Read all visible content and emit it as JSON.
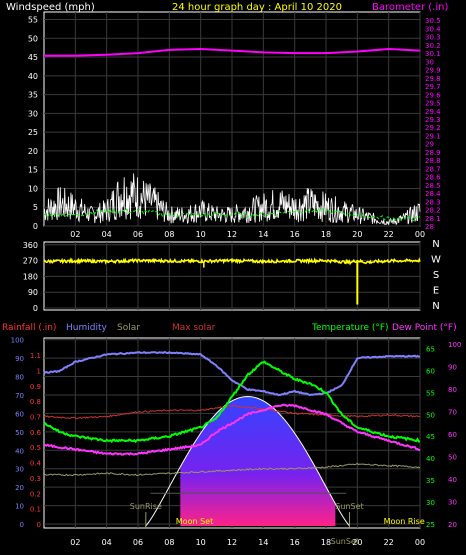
{
  "colors": {
    "wind": "#ffffff",
    "wind_avg": "#00ff00",
    "baro": "#ff00ff",
    "baro_label": "#ff00ff",
    "dir": "#ffff00",
    "rain": "#ff3333",
    "humidity": "#8080ff",
    "solar": "#999966",
    "maxsolar": "#cc3333",
    "temp": "#00ff00",
    "dew": "#ff33ff",
    "gridline": "#3a3a3a",
    "axis_text": "#ffffff",
    "title": "#ffff00"
  },
  "chart_data": [
    {
      "type": "line",
      "name": "wind",
      "title": "24 hour graph day : April 10 2020",
      "ylabel": "Windspeed (mph)",
      "y2label": "Barometer (.in)",
      "ylim": [
        0,
        57
      ],
      "y2lim": [
        28.0,
        30.6
      ],
      "yticks": [
        0,
        5,
        10,
        15,
        20,
        25,
        30,
        35,
        40,
        45,
        50,
        55
      ],
      "y2ticks": [
        "28",
        "28.1",
        "28.2",
        "28.3",
        "28.4",
        "28.5",
        "28.6",
        "28.7",
        "28.8",
        "28.9",
        "29",
        "29.1",
        "29.2",
        "29.3",
        "29.4",
        "29.5",
        "29.6",
        "29.7",
        "29.8",
        "29.9",
        "30",
        "30.1",
        "30.2",
        "30.3",
        "30.4",
        "30.5"
      ],
      "xticks": [
        "02",
        "04",
        "06",
        "08",
        "10",
        "12",
        "14",
        "16",
        "18",
        "20",
        "22",
        "00"
      ],
      "series": [
        {
          "key": "baro",
          "x": [
            0,
            2,
            4,
            6,
            8,
            10,
            12,
            14,
            16,
            18,
            20,
            22,
            24
          ],
          "values": [
            30.07,
            30.07,
            30.08,
            30.1,
            30.14,
            30.15,
            30.13,
            30.11,
            30.1,
            30.1,
            30.12,
            30.15,
            30.13
          ]
        },
        {
          "key": "wind",
          "x": [
            0,
            1,
            2,
            3,
            4,
            5,
            6,
            7,
            8,
            9,
            10,
            11,
            12,
            13,
            14,
            15,
            16,
            17,
            18,
            19,
            20,
            21,
            22,
            23,
            24
          ],
          "values": [
            4,
            6,
            5,
            3,
            4,
            9,
            8,
            6,
            3,
            3,
            4,
            3,
            3,
            4,
            5,
            6,
            5,
            6,
            5,
            4,
            3,
            2,
            1,
            2,
            4
          ]
        },
        {
          "key": "wind_avg",
          "x": [
            0,
            2,
            4,
            6,
            8,
            10,
            12,
            14,
            16,
            18,
            20,
            22,
            24
          ],
          "values": [
            3,
            3,
            4,
            4,
            3,
            3,
            3,
            3,
            4,
            4,
            3,
            2,
            2
          ]
        }
      ]
    },
    {
      "type": "line",
      "name": "direction",
      "yticks": [
        0,
        90,
        180,
        270,
        360
      ],
      "ylim": [
        0,
        360
      ],
      "compass": [
        "N",
        "W",
        "S",
        "E",
        "N"
      ],
      "series": [
        {
          "key": "dir",
          "x": [
            0,
            2,
            4,
            6,
            8,
            10,
            12,
            14,
            16,
            18,
            19.5,
            20,
            20.5,
            22,
            24
          ],
          "values": [
            265,
            268,
            265,
            270,
            268,
            266,
            270,
            265,
            268,
            270,
            260,
            270,
            260,
            268,
            270
          ]
        }
      ]
    },
    {
      "type": "line",
      "name": "weather",
      "legend": [
        "Rainfall (.in)",
        "Humidity",
        "Solar",
        "Max solar",
        "Temperature (°F)",
        "Dew Point (°F)"
      ],
      "rain_ticks": [
        "0",
        "0.1",
        "0.2",
        "0.3",
        "0.4",
        "0.5",
        "0.6",
        "0.7",
        "0.8",
        "0.9",
        "1",
        "1.1"
      ],
      "hum_ticks": [
        0,
        10,
        20,
        30,
        40,
        50,
        60,
        70,
        80,
        90,
        100
      ],
      "temp_ticks": [
        25,
        30,
        35,
        40,
        45,
        50,
        55,
        60,
        65
      ],
      "dew_ticks": [
        20,
        30,
        40,
        50,
        60,
        70,
        80,
        90,
        100
      ],
      "labels": {
        "sunrise": "SunRise",
        "sunset": "SunSet",
        "moonset": "Moon Set",
        "moonrise": "Moon Rise"
      },
      "series": [
        {
          "key": "humidity",
          "x": [
            0,
            1,
            2,
            4,
            6,
            8,
            10,
            11,
            12,
            13,
            14,
            15,
            16,
            17,
            18,
            19,
            20,
            22,
            24
          ],
          "values": [
            82,
            83,
            88,
            92,
            93,
            93,
            92,
            86,
            78,
            73,
            72,
            70,
            72,
            70,
            71,
            75,
            90,
            91,
            91
          ]
        },
        {
          "key": "temp",
          "x": [
            0,
            1,
            2,
            4,
            6,
            8,
            10,
            11,
            12,
            13,
            14,
            15,
            16,
            17,
            18,
            19,
            20,
            22,
            24
          ],
          "values": [
            48,
            46,
            45,
            44,
            44,
            45,
            47,
            49,
            54,
            59,
            62,
            60,
            58,
            57,
            55,
            50,
            47,
            45,
            44
          ]
        },
        {
          "key": "dew",
          "x": [
            0,
            2,
            4,
            6,
            8,
            10,
            11,
            12,
            13,
            14,
            15,
            16,
            17,
            18,
            19,
            20,
            22,
            24
          ],
          "values": [
            43,
            42,
            41,
            41,
            42,
            43,
            46,
            48,
            50,
            51,
            52,
            52,
            51,
            50,
            48,
            46,
            44,
            42
          ]
        },
        {
          "key": "solar",
          "x": [
            0,
            2,
            4,
            6,
            8,
            10,
            12,
            14,
            16,
            18,
            20,
            22,
            24
          ],
          "values": [
            0.32,
            0.32,
            0.33,
            0.32,
            0.33,
            0.34,
            0.35,
            0.36,
            0.36,
            0.37,
            0.39,
            0.38,
            0.37
          ]
        },
        {
          "key": "maxsolar",
          "x": [
            0,
            2,
            4,
            6,
            8,
            10,
            12,
            14,
            16,
            18,
            20,
            22,
            24
          ],
          "values": [
            0.7,
            0.69,
            0.7,
            0.73,
            0.74,
            0.74,
            0.77,
            0.75,
            0.72,
            0.71,
            0.7,
            0.71,
            0.7
          ]
        }
      ],
      "solar_curve": {
        "start": 6.5,
        "end": 19.5,
        "peak": 1.0
      },
      "sunrise_hour": 6.5,
      "sunset_hour": 19.5,
      "moonset_hour": 10.5,
      "moonrise_hour": 23.5
    }
  ]
}
